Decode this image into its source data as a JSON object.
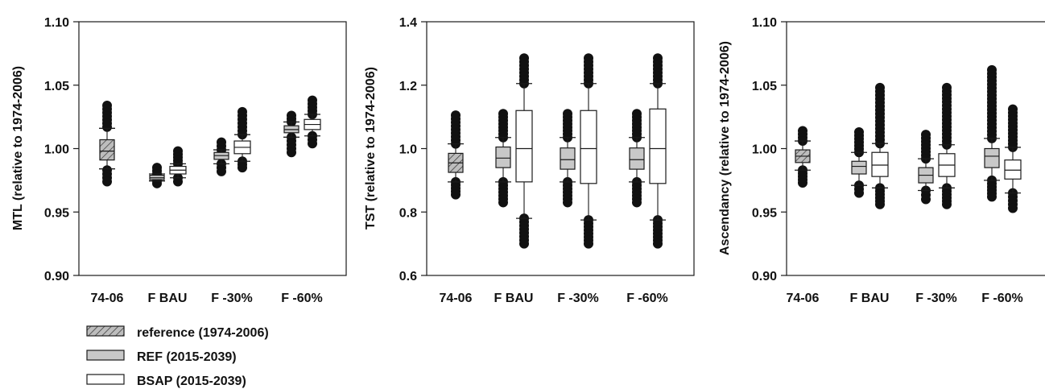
{
  "colors": {
    "ref_fill": "#c8c8c8",
    "bsap_fill": "#ffffff",
    "reference_fill": "#b4b4b4",
    "ink": "#1a1a1a"
  },
  "categories": [
    "74-06",
    "F BAU",
    "F -30%",
    "F -60%"
  ],
  "legend": [
    {
      "name": "reference (1974-2006)",
      "fill": "hatched"
    },
    {
      "name": "REF (2015-2039)",
      "fill": "grey"
    },
    {
      "name": "BSAP (2015-2039)",
      "fill": "white"
    }
  ],
  "chart_data": [
    {
      "type": "box",
      "ylabel": "MTL (relative to 1974-2006)",
      "ylim": [
        0.9,
        1.1
      ],
      "yticks": [
        "0.90",
        "0.95",
        "1.00",
        "1.05",
        "1.10"
      ],
      "categories": [
        "74-06",
        "F BAU",
        "F -30%",
        "F -60%"
      ],
      "boxes": [
        {
          "category": "74-06",
          "series": "reference (1974-2006)",
          "whisker_low": 0.984,
          "q1": 0.991,
          "median": 0.998,
          "q3": 1.007,
          "whisker_high": 1.016,
          "outliers_low": [
            0.974,
            0.983
          ],
          "outliers_high": [
            1.017,
            1.034
          ]
        },
        {
          "category": "F BAU",
          "series": "REF (2015-2039)",
          "whisker_low": 0.9745,
          "q1": 0.9755,
          "median": 0.977,
          "q3": 0.979,
          "whisker_high": 0.98,
          "outliers_low": [
            0.9725,
            0.9745
          ],
          "outliers_high": [
            0.98,
            0.985
          ]
        },
        {
          "category": "F BAU",
          "series": "BSAP (2015-2039)",
          "whisker_low": 0.977,
          "q1": 0.98,
          "median": 0.983,
          "q3": 0.986,
          "whisker_high": 0.988,
          "outliers_low": [
            0.974,
            0.977
          ],
          "outliers_high": [
            0.988,
            0.998
          ]
        },
        {
          "category": "F -30%",
          "series": "REF (2015-2039)",
          "whisker_low": 0.988,
          "q1": 0.9915,
          "median": 0.9945,
          "q3": 0.997,
          "whisker_high": 0.999,
          "outliers_low": [
            0.982,
            0.988
          ],
          "outliers_high": [
            0.999,
            1.005
          ]
        },
        {
          "category": "F -30%",
          "series": "BSAP (2015-2039)",
          "whisker_low": 0.99,
          "q1": 0.996,
          "median": 1.001,
          "q3": 1.006,
          "whisker_high": 1.011,
          "outliers_low": [
            0.985,
            0.99
          ],
          "outliers_high": [
            1.011,
            1.029
          ]
        },
        {
          "category": "F -60%",
          "series": "REF (2015-2039)",
          "whisker_low": 1.009,
          "q1": 1.0125,
          "median": 1.015,
          "q3": 1.018,
          "whisker_high": 1.021,
          "outliers_low": [
            0.997,
            1.009
          ],
          "outliers_high": [
            1.021,
            1.026
          ]
        },
        {
          "category": "F -60%",
          "series": "BSAP (2015-2039)",
          "whisker_low": 1.01,
          "q1": 1.015,
          "median": 1.019,
          "q3": 1.023,
          "whisker_high": 1.027,
          "outliers_low": [
            1.004,
            1.01
          ],
          "outliers_high": [
            1.027,
            1.038
          ]
        }
      ]
    },
    {
      "type": "box",
      "ylabel": "TST (relative to 1974-2006)",
      "ylim": [
        0.6,
        1.4
      ],
      "yticks": [
        "0.6",
        "0.8",
        "1.0",
        "1.2",
        "1.4"
      ],
      "categories": [
        "74-06",
        "F BAU",
        "F -30%",
        "F -60%"
      ],
      "boxes": [
        {
          "category": "74-06",
          "series": "reference (1974-2006)",
          "whisker_low": 0.895,
          "q1": 0.925,
          "median": 0.955,
          "q3": 0.985,
          "whisker_high": 1.015,
          "outliers_low": [
            0.855,
            0.895
          ],
          "outliers_high": [
            1.015,
            1.105
          ]
        },
        {
          "category": "F BAU",
          "series": "REF (2015-2039)",
          "whisker_low": 0.895,
          "q1": 0.94,
          "median": 0.97,
          "q3": 1.005,
          "whisker_high": 1.035,
          "outliers_low": [
            0.83,
            0.895
          ],
          "outliers_high": [
            1.035,
            1.11
          ]
        },
        {
          "category": "F BAU",
          "series": "BSAP (2015-2039)",
          "whisker_low": 0.78,
          "q1": 0.895,
          "median": 1.0,
          "q3": 1.12,
          "whisker_high": 1.205,
          "outliers_low": [
            0.7,
            0.78
          ],
          "outliers_high": [
            1.205,
            1.285
          ]
        },
        {
          "category": "F -30%",
          "series": "REF (2015-2039)",
          "whisker_low": 0.895,
          "q1": 0.935,
          "median": 0.965,
          "q3": 1.002,
          "whisker_high": 1.035,
          "outliers_low": [
            0.83,
            0.895
          ],
          "outliers_high": [
            1.035,
            1.11
          ]
        },
        {
          "category": "F -30%",
          "series": "BSAP (2015-2039)",
          "whisker_low": 0.775,
          "q1": 0.89,
          "median": 1.0,
          "q3": 1.12,
          "whisker_high": 1.205,
          "outliers_low": [
            0.7,
            0.775
          ],
          "outliers_high": [
            1.205,
            1.285
          ]
        },
        {
          "category": "F -60%",
          "series": "REF (2015-2039)",
          "whisker_low": 0.895,
          "q1": 0.935,
          "median": 0.965,
          "q3": 1.002,
          "whisker_high": 1.035,
          "outliers_low": [
            0.83,
            0.895
          ],
          "outliers_high": [
            1.035,
            1.11
          ]
        },
        {
          "category": "F -60%",
          "series": "BSAP (2015-2039)",
          "whisker_low": 0.775,
          "q1": 0.89,
          "median": 1.0,
          "q3": 1.125,
          "whisker_high": 1.205,
          "outliers_low": [
            0.7,
            0.775
          ],
          "outliers_high": [
            1.205,
            1.285
          ]
        }
      ]
    },
    {
      "type": "box",
      "ylabel": "Ascendancy (relative to 1974-2006)",
      "ylim": [
        0.9,
        1.1
      ],
      "yticks": [
        "0.90",
        "0.95",
        "1.00",
        "1.05",
        "1.10"
      ],
      "categories": [
        "74-06",
        "F BAU",
        "F -30%",
        "F -60%"
      ],
      "boxes": [
        {
          "category": "74-06",
          "series": "reference (1974-2006)",
          "whisker_low": 0.983,
          "q1": 0.989,
          "median": 0.994,
          "q3": 0.999,
          "whisker_high": 1.006,
          "outliers_low": [
            0.973,
            0.983
          ],
          "outliers_high": [
            1.006,
            1.014
          ]
        },
        {
          "category": "F BAU",
          "series": "REF (2015-2039)",
          "whisker_low": 0.971,
          "q1": 0.98,
          "median": 0.986,
          "q3": 0.99,
          "whisker_high": 0.997,
          "outliers_low": [
            0.965,
            0.971
          ],
          "outliers_high": [
            0.997,
            1.013
          ]
        },
        {
          "category": "F BAU",
          "series": "BSAP (2015-2039)",
          "whisker_low": 0.969,
          "q1": 0.978,
          "median": 0.987,
          "q3": 0.997,
          "whisker_high": 1.004,
          "outliers_low": [
            0.956,
            0.969
          ],
          "outliers_high": [
            1.004,
            1.048
          ]
        },
        {
          "category": "F -30%",
          "series": "REF (2015-2039)",
          "whisker_low": 0.967,
          "q1": 0.973,
          "median": 0.979,
          "q3": 0.985,
          "whisker_high": 0.992,
          "outliers_low": [
            0.96,
            0.967
          ],
          "outliers_high": [
            0.992,
            1.011
          ]
        },
        {
          "category": "F -30%",
          "series": "BSAP (2015-2039)",
          "whisker_low": 0.969,
          "q1": 0.978,
          "median": 0.987,
          "q3": 0.996,
          "whisker_high": 1.003,
          "outliers_low": [
            0.956,
            0.969
          ],
          "outliers_high": [
            1.003,
            1.048
          ]
        },
        {
          "category": "F -60%",
          "series": "REF (2015-2039)",
          "whisker_low": 0.975,
          "q1": 0.985,
          "median": 0.994,
          "q3": 1.0,
          "whisker_high": 1.008,
          "outliers_low": [
            0.962,
            0.975
          ],
          "outliers_high": [
            1.008,
            1.062
          ]
        },
        {
          "category": "F -60%",
          "series": "BSAP (2015-2039)",
          "whisker_low": 0.965,
          "q1": 0.976,
          "median": 0.983,
          "q3": 0.991,
          "whisker_high": 1.001,
          "outliers_low": [
            0.953,
            0.965
          ],
          "outliers_high": [
            1.001,
            1.031
          ]
        }
      ]
    }
  ]
}
